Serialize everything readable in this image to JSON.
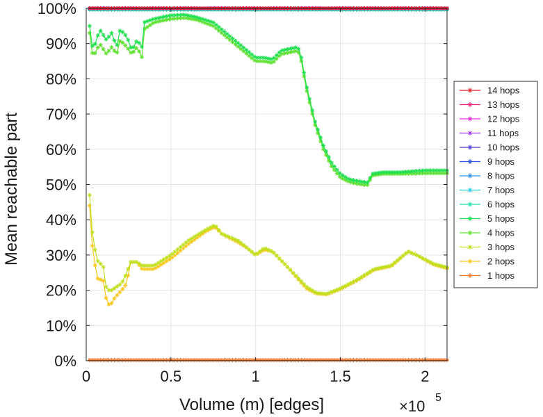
{
  "chart_data": {
    "type": "line",
    "title": "",
    "xlabel": "Volume (m) [edges]",
    "ylabel": "Mean reachable part",
    "x_multiplier_base": "×10",
    "x_multiplier_exp": "5",
    "xlim": [
      0,
      2.13
    ],
    "ylim": [
      0,
      100
    ],
    "x_ticks": [
      0,
      0.5,
      1,
      1.5,
      2
    ],
    "x_tick_labels": [
      "0",
      "0.5",
      "1",
      "1.5",
      "2"
    ],
    "y_ticks": [
      0,
      10,
      20,
      30,
      40,
      50,
      60,
      70,
      80,
      90,
      100
    ],
    "y_tick_labels": [
      "0%",
      "10%",
      "20%",
      "30%",
      "40%",
      "50%",
      "60%",
      "70%",
      "80%",
      "90%",
      "100%"
    ],
    "grid": true,
    "legend_position": "right",
    "marker": "asterisk",
    "series": [
      {
        "name": "14 hops",
        "color": "#e8202a",
        "points": [
          [
            0.02,
            100
          ],
          [
            0.5,
            100
          ],
          [
            1,
            100
          ],
          [
            1.5,
            100
          ],
          [
            2.13,
            100
          ]
        ]
      },
      {
        "name": "13 hops",
        "color": "#f0207a",
        "points": [
          [
            0.02,
            100
          ],
          [
            0.5,
            100
          ],
          [
            1,
            100
          ],
          [
            1.5,
            100
          ],
          [
            2.13,
            100
          ]
        ]
      },
      {
        "name": "12 hops",
        "color": "#e82ad8",
        "points": [
          [
            0.02,
            100
          ],
          [
            0.5,
            100
          ],
          [
            1,
            100
          ],
          [
            1.5,
            100
          ],
          [
            2.13,
            100
          ]
        ]
      },
      {
        "name": "11 hops",
        "color": "#a040f0",
        "points": [
          [
            0.02,
            100
          ],
          [
            0.5,
            100
          ],
          [
            1,
            100
          ],
          [
            1.5,
            100
          ],
          [
            2.13,
            100
          ]
        ]
      },
      {
        "name": "10 hops",
        "color": "#4a3ad8",
        "points": [
          [
            0.02,
            100
          ],
          [
            0.5,
            100
          ],
          [
            1,
            100
          ],
          [
            1.5,
            100
          ],
          [
            2.13,
            100
          ]
        ]
      },
      {
        "name": "9 hops",
        "color": "#2a50e0",
        "points": [
          [
            0.02,
            100
          ],
          [
            0.5,
            100
          ],
          [
            1,
            100
          ],
          [
            1.5,
            100
          ],
          [
            2.13,
            100
          ]
        ]
      },
      {
        "name": "8 hops",
        "color": "#2a90e8",
        "points": [
          [
            0.02,
            100
          ],
          [
            0.5,
            100
          ],
          [
            1,
            100
          ],
          [
            1.5,
            100
          ],
          [
            2.13,
            100
          ]
        ]
      },
      {
        "name": "7 hops",
        "color": "#20d0e8",
        "points": [
          [
            0.02,
            99.8
          ],
          [
            0.5,
            99.8
          ],
          [
            1,
            99.8
          ],
          [
            1.5,
            99.8
          ],
          [
            2.13,
            99.8
          ]
        ]
      },
      {
        "name": "6 hops",
        "color": "#20e0a8",
        "points": [
          [
            0.02,
            99.6
          ],
          [
            0.5,
            99.6
          ],
          [
            1,
            99.6
          ],
          [
            1.5,
            99.6
          ],
          [
            2.13,
            99.6
          ]
        ]
      },
      {
        "name": "5 hops",
        "color": "#20e050",
        "points": [
          [
            0.02,
            95
          ],
          [
            0.04,
            88
          ],
          [
            0.08,
            94
          ],
          [
            0.12,
            91
          ],
          [
            0.15,
            93
          ],
          [
            0.18,
            89
          ],
          [
            0.2,
            94
          ],
          [
            0.24,
            92
          ],
          [
            0.27,
            88
          ],
          [
            0.3,
            91
          ],
          [
            0.33,
            89
          ],
          [
            0.34,
            96
          ],
          [
            0.4,
            97
          ],
          [
            0.5,
            98
          ],
          [
            0.58,
            98.2
          ],
          [
            0.65,
            97.5
          ],
          [
            0.75,
            96
          ],
          [
            0.8,
            94
          ],
          [
            0.9,
            90
          ],
          [
            1.0,
            86
          ],
          [
            1.05,
            86
          ],
          [
            1.1,
            85.5
          ],
          [
            1.15,
            88
          ],
          [
            1.25,
            89
          ],
          [
            1.27,
            86
          ],
          [
            1.3,
            78
          ],
          [
            1.35,
            68
          ],
          [
            1.4,
            61
          ],
          [
            1.45,
            56
          ],
          [
            1.5,
            53
          ],
          [
            1.55,
            51.5
          ],
          [
            1.6,
            51
          ],
          [
            1.67,
            50.5
          ],
          [
            1.68,
            53
          ],
          [
            1.75,
            53.5
          ],
          [
            1.85,
            53.5
          ],
          [
            2.0,
            54
          ],
          [
            2.13,
            54
          ]
        ]
      },
      {
        "name": "4 hops",
        "color": "#60e030",
        "points": [
          [
            0.02,
            93
          ],
          [
            0.04,
            86
          ],
          [
            0.08,
            90
          ],
          [
            0.12,
            87
          ],
          [
            0.15,
            89
          ],
          [
            0.18,
            87
          ],
          [
            0.2,
            91
          ],
          [
            0.24,
            89
          ],
          [
            0.27,
            87
          ],
          [
            0.3,
            89
          ],
          [
            0.33,
            86
          ],
          [
            0.34,
            94
          ],
          [
            0.4,
            96
          ],
          [
            0.5,
            97
          ],
          [
            0.58,
            97.3
          ],
          [
            0.65,
            96.8
          ],
          [
            0.75,
            95
          ],
          [
            0.8,
            93
          ],
          [
            0.9,
            89
          ],
          [
            1.0,
            85
          ],
          [
            1.05,
            85
          ],
          [
            1.1,
            84.5
          ],
          [
            1.15,
            87
          ],
          [
            1.25,
            88
          ],
          [
            1.27,
            85
          ],
          [
            1.3,
            77
          ],
          [
            1.35,
            67
          ],
          [
            1.4,
            60
          ],
          [
            1.45,
            55
          ],
          [
            1.5,
            52
          ],
          [
            1.55,
            50.8
          ],
          [
            1.6,
            50.2
          ],
          [
            1.67,
            49.8
          ],
          [
            1.68,
            52.5
          ],
          [
            1.75,
            53
          ],
          [
            1.85,
            53
          ],
          [
            2.0,
            53.2
          ],
          [
            2.13,
            53.2
          ]
        ]
      },
      {
        "name": "3 hops",
        "color": "#c0e020",
        "points": [
          [
            0.02,
            47
          ],
          [
            0.04,
            34
          ],
          [
            0.07,
            28
          ],
          [
            0.1,
            27
          ],
          [
            0.12,
            20
          ],
          [
            0.15,
            20
          ],
          [
            0.18,
            21
          ],
          [
            0.21,
            22
          ],
          [
            0.24,
            25
          ],
          [
            0.26,
            28
          ],
          [
            0.3,
            28
          ],
          [
            0.33,
            27
          ],
          [
            0.4,
            27
          ],
          [
            0.5,
            30
          ],
          [
            0.6,
            34
          ],
          [
            0.7,
            37
          ],
          [
            0.76,
            38.5
          ],
          [
            0.8,
            36
          ],
          [
            0.9,
            34
          ],
          [
            0.95,
            32
          ],
          [
            1.0,
            30
          ],
          [
            1.05,
            32
          ],
          [
            1.1,
            31
          ],
          [
            1.2,
            26
          ],
          [
            1.3,
            21
          ],
          [
            1.36,
            19.2
          ],
          [
            1.42,
            19
          ],
          [
            1.5,
            20.5
          ],
          [
            1.6,
            23
          ],
          [
            1.7,
            26
          ],
          [
            1.8,
            27
          ],
          [
            1.9,
            31
          ],
          [
            1.95,
            30
          ],
          [
            2.05,
            27.5
          ],
          [
            2.13,
            26.5
          ]
        ]
      },
      {
        "name": "2 hops",
        "color": "#f8c820",
        "points": [
          [
            0.02,
            44
          ],
          [
            0.04,
            30
          ],
          [
            0.07,
            23
          ],
          [
            0.1,
            23
          ],
          [
            0.12,
            17
          ],
          [
            0.14,
            15.5
          ],
          [
            0.17,
            18
          ],
          [
            0.21,
            20
          ],
          [
            0.24,
            22
          ],
          [
            0.26,
            28
          ],
          [
            0.3,
            28
          ],
          [
            0.33,
            26
          ],
          [
            0.4,
            26
          ],
          [
            0.5,
            29
          ],
          [
            0.6,
            33
          ],
          [
            0.7,
            36.5
          ],
          [
            0.76,
            38
          ],
          [
            0.8,
            36
          ],
          [
            0.9,
            33.5
          ],
          [
            0.95,
            32
          ],
          [
            1.0,
            30
          ],
          [
            1.05,
            31.5
          ],
          [
            1.1,
            31
          ],
          [
            1.2,
            26
          ],
          [
            1.3,
            20.5
          ],
          [
            1.36,
            19
          ],
          [
            1.42,
            18.8
          ],
          [
            1.5,
            20.3
          ],
          [
            1.6,
            22.8
          ],
          [
            1.7,
            25.8
          ],
          [
            1.8,
            26.8
          ],
          [
            1.9,
            31
          ],
          [
            1.95,
            30
          ],
          [
            2.05,
            27.3
          ],
          [
            2.13,
            26.2
          ]
        ]
      },
      {
        "name": "1 hops",
        "color": "#f07830",
        "points": [
          [
            0.02,
            0.2
          ],
          [
            0.5,
            0.2
          ],
          [
            1,
            0.2
          ],
          [
            1.5,
            0.2
          ],
          [
            2.13,
            0.2
          ]
        ]
      }
    ]
  }
}
